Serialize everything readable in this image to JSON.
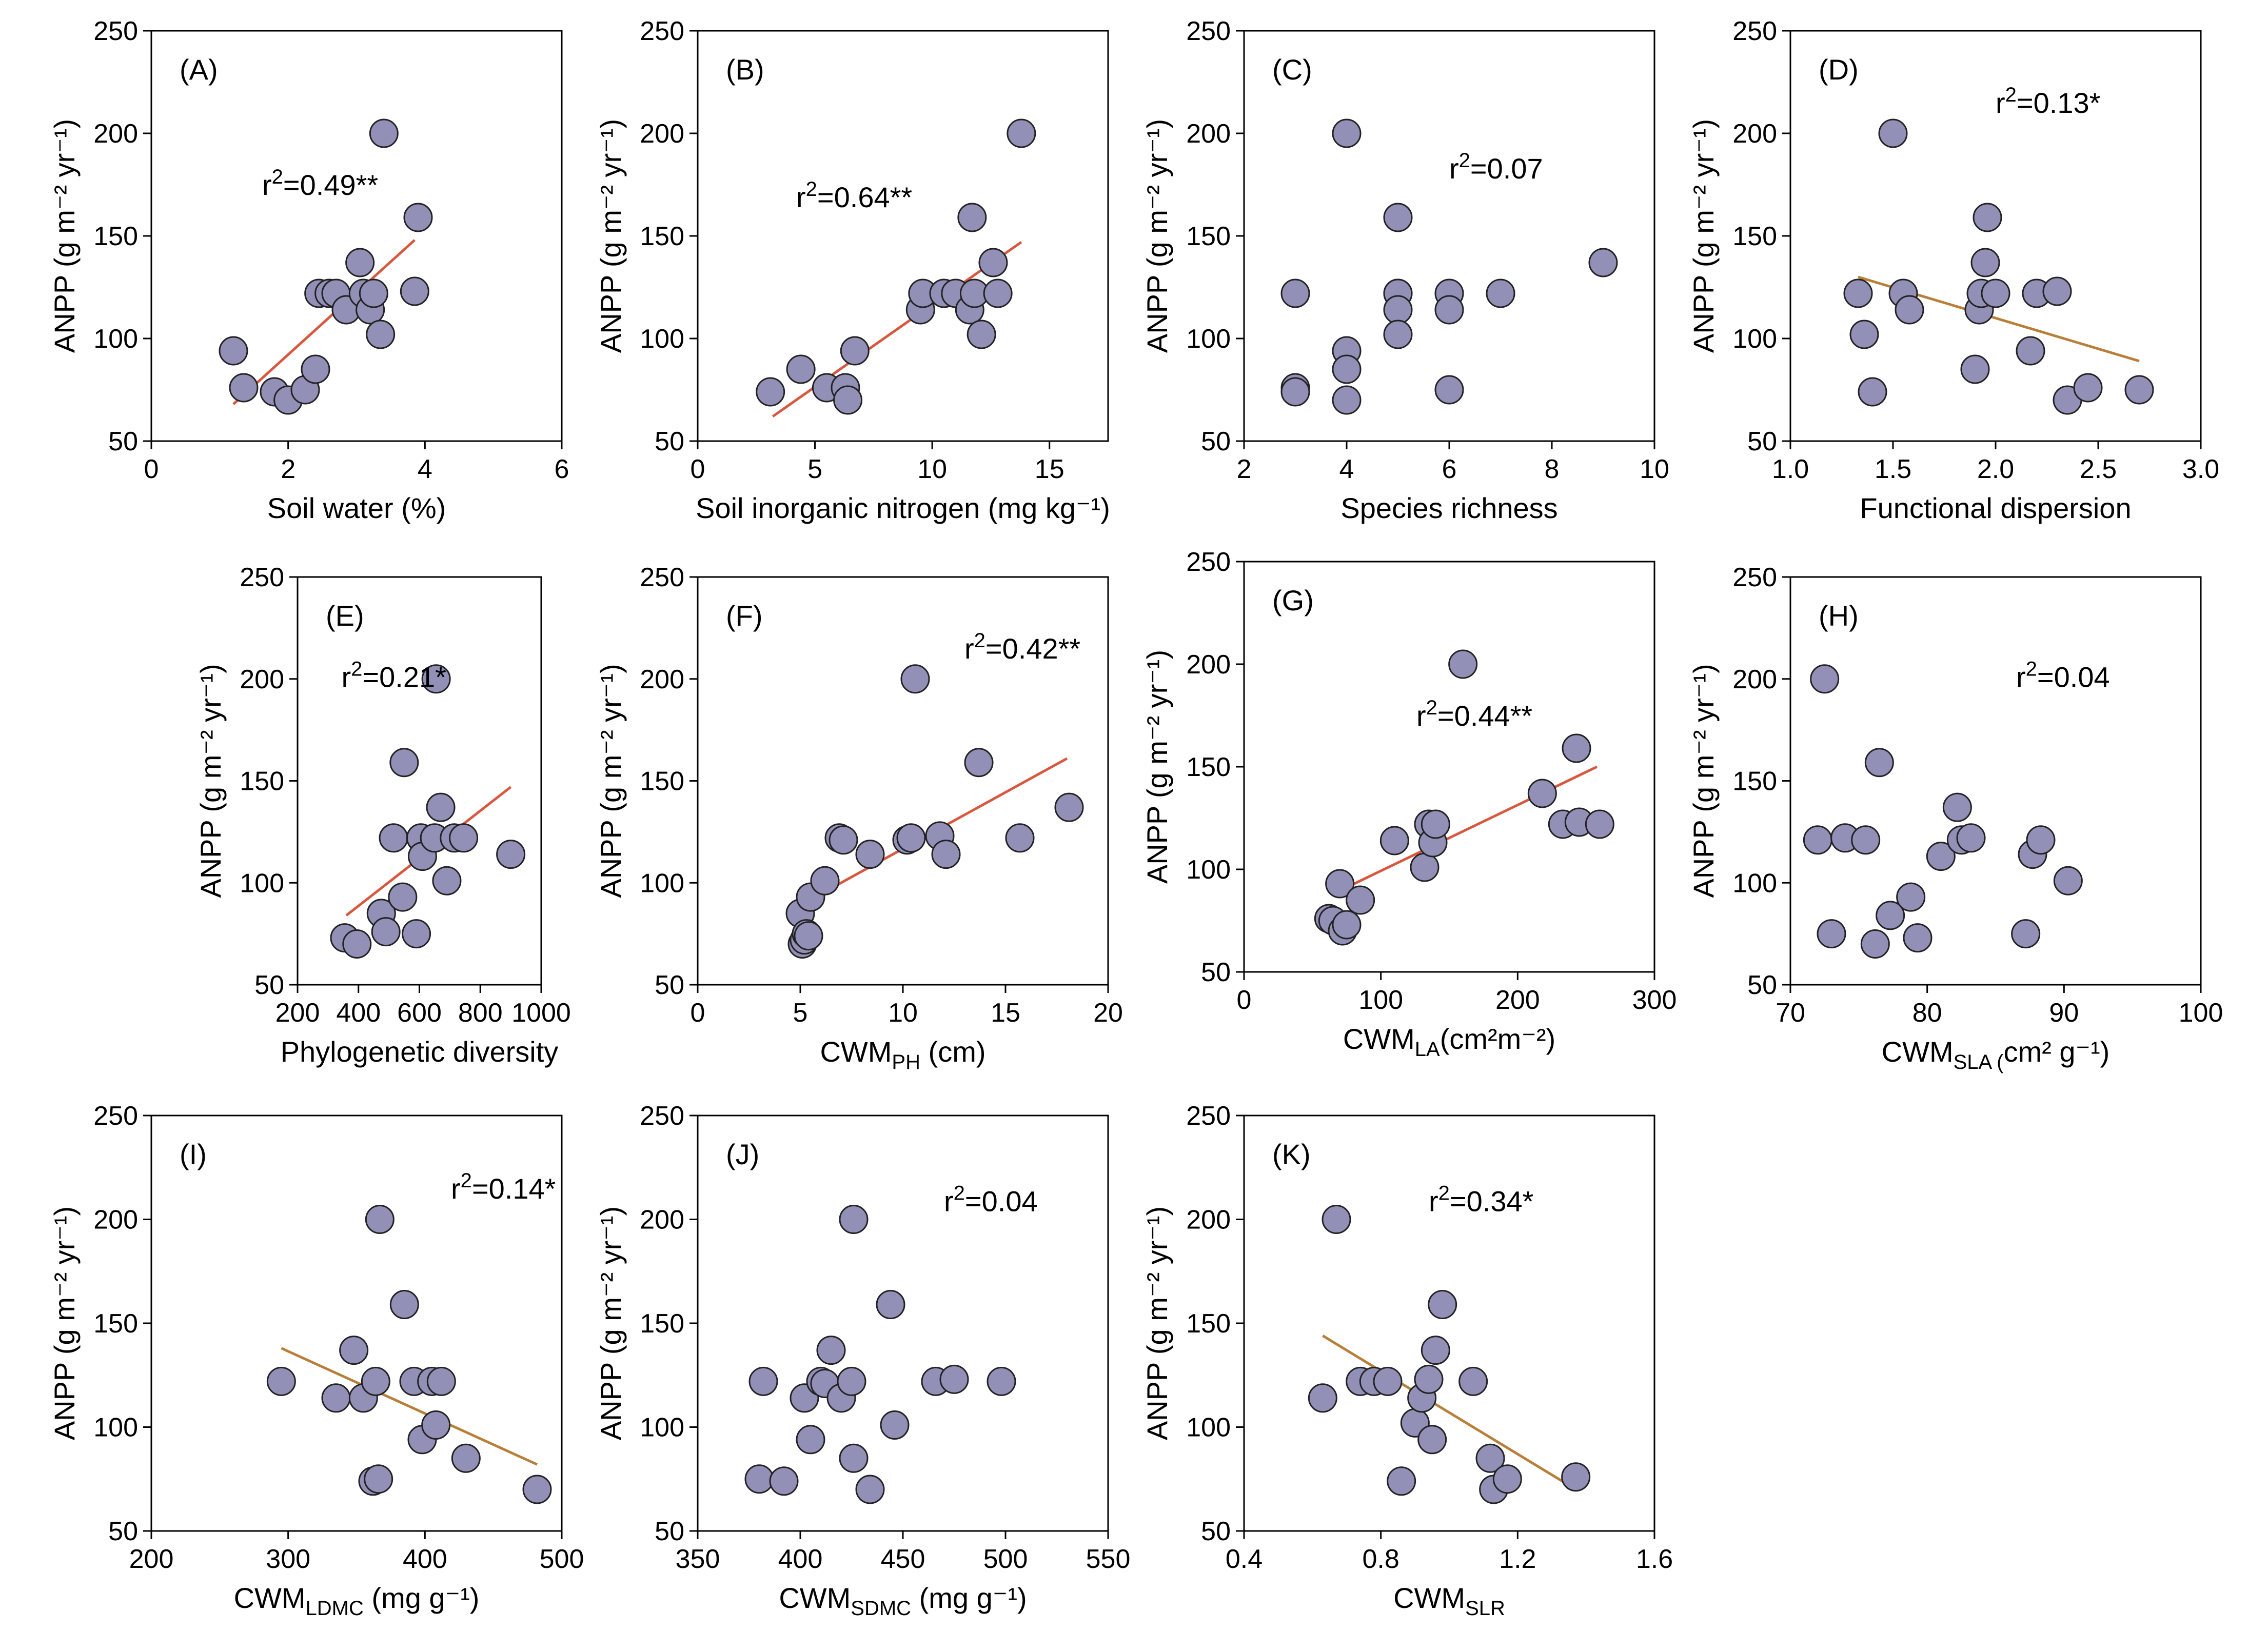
{
  "colors": {
    "point_fill": "#9390b8",
    "line_red": "#d9573f",
    "line_brown": "#b97f39"
  },
  "chart_data": [
    {
      "type": "scatter",
      "panel": "(A)",
      "xlabel": "Soil water (%)",
      "ylabel": "ANPP (g m⁻² yr⁻¹)",
      "xlim": [
        0,
        6
      ],
      "ylim": [
        50,
        250
      ],
      "xticks": [
        0,
        2,
        4,
        6
      ],
      "xtick_labels": [
        "0",
        "2",
        "4",
        "6"
      ],
      "yticks": [
        50,
        100,
        150,
        200,
        250
      ],
      "annotation": "r²=0.49**",
      "line_color": "#d9573f",
      "fit": [
        [
          1.2,
          68
        ],
        [
          3.85,
          148
        ]
      ],
      "x": [
        1.2,
        1.35,
        1.8,
        2.0,
        2.25,
        2.4,
        2.45,
        2.6,
        2.7,
        2.85,
        3.05,
        3.1,
        3.2,
        3.25,
        3.35,
        3.4,
        3.85,
        3.9
      ],
      "y": [
        94,
        76,
        74,
        70,
        75,
        85,
        122,
        122,
        122,
        114,
        137,
        122,
        114,
        122,
        102,
        200,
        123,
        159
      ]
    },
    {
      "type": "scatter",
      "panel": "(B)",
      "xlabel": "Soil inorganic nitrogen (mg kg⁻¹)",
      "ylabel": "ANPP (g m⁻² yr⁻¹)",
      "xlim": [
        0,
        17.5
      ],
      "ylim": [
        50,
        250
      ],
      "xticks": [
        0,
        5,
        10,
        15
      ],
      "xtick_labels": [
        "0",
        "5",
        "10",
        "15"
      ],
      "yticks": [
        50,
        100,
        150,
        200,
        250
      ],
      "annotation": "r²=0.64**",
      "line_color": "#d9573f",
      "fit": [
        [
          3.2,
          62
        ],
        [
          13.8,
          147
        ]
      ],
      "x": [
        3.1,
        4.4,
        5.5,
        6.3,
        6.4,
        6.7,
        9.5,
        9.6,
        10.5,
        11.0,
        11.6,
        11.7,
        11.8,
        12.1,
        12.6,
        12.8,
        13.8
      ],
      "y": [
        74,
        85,
        76,
        76,
        70,
        94,
        114,
        122,
        122,
        122,
        114,
        159,
        122,
        102,
        137,
        122,
        200
      ]
    },
    {
      "type": "scatter",
      "panel": "(C)",
      "xlabel": "Species richness",
      "ylabel": "ANPP (g m⁻² yr⁻¹)",
      "xlim": [
        2,
        10
      ],
      "ylim": [
        50,
        250
      ],
      "xticks": [
        2,
        4,
        6,
        8,
        10
      ],
      "xtick_labels": [
        "2",
        "4",
        "6",
        "8",
        "10"
      ],
      "yticks": [
        50,
        100,
        150,
        200,
        250
      ],
      "annotation": "r²=0.07",
      "x": [
        3,
        3,
        3,
        4,
        4,
        4,
        4,
        5,
        5,
        5,
        5,
        5,
        6,
        6,
        6,
        7,
        9
      ],
      "y": [
        122,
        76,
        74,
        94,
        85,
        70,
        200,
        159,
        122,
        122,
        114,
        102,
        122,
        114,
        75,
        122,
        137
      ]
    },
    {
      "type": "scatter",
      "panel": "(D)",
      "xlabel": "Functional dispersion",
      "ylabel": "ANPP (g m⁻² yr⁻¹)",
      "xlim": [
        1.0,
        3.0
      ],
      "ylim": [
        50,
        250
      ],
      "xticks": [
        1.0,
        1.5,
        2.0,
        2.5,
        3.0
      ],
      "xtick_labels": [
        "1.0",
        "1.5",
        "2.0",
        "2.5",
        "3.0"
      ],
      "yticks": [
        50,
        100,
        150,
        200,
        250
      ],
      "annotation": "r²=0.13*",
      "line_color": "#b97f39",
      "fit": [
        [
          1.33,
          130
        ],
        [
          2.7,
          89
        ]
      ],
      "x": [
        1.33,
        1.36,
        1.4,
        1.5,
        1.55,
        1.58,
        1.9,
        1.92,
        1.93,
        1.95,
        1.96,
        2.0,
        2.17,
        2.2,
        2.3,
        2.35,
        2.45,
        2.7
      ],
      "y": [
        122,
        102,
        74,
        200,
        122,
        114,
        85,
        114,
        122,
        137,
        159,
        122,
        94,
        122,
        123,
        70,
        76,
        75
      ]
    },
    {
      "type": "scatter",
      "panel": "(E)",
      "xlabel": "Phylogenetic diversity",
      "ylabel": "ANPP (g m⁻² yr⁻¹)",
      "xlim": [
        200,
        1000
      ],
      "ylim": [
        50,
        250
      ],
      "xticks": [
        200,
        400,
        600,
        800,
        1000
      ],
      "xtick_labels": [
        "200",
        "400",
        "600",
        "800",
        "1000"
      ],
      "yticks": [
        50,
        100,
        150,
        200,
        250
      ],
      "annotation": "r²=0.21*",
      "line_color": "#d9573f",
      "fit": [
        [
          360,
          84
        ],
        [
          900,
          147
        ]
      ],
      "x": [
        355,
        395,
        475,
        490,
        515,
        545,
        550,
        590,
        605,
        610,
        650,
        655,
        670,
        690,
        715,
        745,
        900
      ],
      "y": [
        73,
        70,
        85,
        76,
        122,
        93,
        159,
        75,
        122,
        113,
        122,
        200,
        137,
        101,
        122,
        122,
        114
      ]
    },
    {
      "type": "scatter",
      "panel": "(F)",
      "xlabel": "CWM",
      "xlabel_sub": "PH",
      "xlabel_suffix": " (cm)",
      "ylabel": "ANPP (g m⁻² yr⁻¹)",
      "xlim": [
        0,
        20
      ],
      "ylim": [
        50,
        250
      ],
      "xticks": [
        0,
        5,
        10,
        15,
        20
      ],
      "xtick_labels": [
        "0",
        "5",
        "10",
        "15",
        "20"
      ],
      "yticks": [
        50,
        100,
        150,
        200,
        250
      ],
      "annotation": "r²=0.42**",
      "line_color": "#d9573f",
      "fit": [
        [
          5.0,
          89
        ],
        [
          18.0,
          161
        ]
      ],
      "x": [
        5.0,
        5.1,
        5.2,
        5.3,
        5.4,
        5.5,
        6.2,
        6.9,
        7.1,
        8.4,
        10.2,
        10.4,
        10.6,
        11.8,
        12.1,
        13.7,
        15.7,
        18.1
      ],
      "y": [
        85,
        70,
        72,
        75,
        74,
        93,
        101,
        122,
        121,
        114,
        121,
        122,
        200,
        123,
        114,
        159,
        122,
        137
      ]
    },
    {
      "type": "scatter",
      "panel": "(G)",
      "xlabel": "CWM",
      "xlabel_sub": "LA",
      "xlabel_suffix": "(cm²m⁻²)",
      "ylabel": "ANPP (g m⁻² yr⁻¹)",
      "xlim": [
        0,
        300
      ],
      "ylim": [
        50,
        250
      ],
      "xticks": [
        0,
        100,
        200,
        300
      ],
      "xtick_labels": [
        "0",
        "100",
        "200",
        "300"
      ],
      "yticks": [
        50,
        100,
        150,
        200,
        250
      ],
      "annotation": "r²=0.44**",
      "line_color": "#d9573f",
      "fit": [
        [
          65,
          88
        ],
        [
          258,
          150
        ]
      ],
      "x": [
        62,
        65,
        70,
        72,
        75,
        85,
        110,
        132,
        135,
        138,
        140,
        160,
        218,
        233,
        245,
        243,
        260
      ],
      "y": [
        76,
        75,
        93,
        70,
        73,
        85,
        114,
        101,
        122,
        113,
        122,
        200,
        137,
        122,
        123,
        159,
        122
      ]
    },
    {
      "type": "scatter",
      "panel": "(H)",
      "xlabel": "CWM",
      "xlabel_sub": "SLA (",
      "xlabel_suffix": "cm² g⁻¹)",
      "ylabel": "ANPP (g m⁻² yr⁻¹)",
      "xlim": [
        70,
        100
      ],
      "ylim": [
        50,
        250
      ],
      "xticks": [
        70,
        80,
        90,
        100
      ],
      "xtick_labels": [
        "70",
        "80",
        "90",
        "100"
      ],
      "yticks": [
        50,
        100,
        150,
        200,
        250
      ],
      "annotation": "r²=0.04",
      "x": [
        72,
        72.5,
        73,
        74,
        75.5,
        76.2,
        76.5,
        77.3,
        78.8,
        79.3,
        81.0,
        82.2,
        82.5,
        83.2,
        87.2,
        87.7,
        88.3,
        90.3
      ],
      "y": [
        121,
        200,
        75,
        122,
        121,
        70,
        159,
        84,
        93,
        73,
        113,
        137,
        121,
        122,
        75,
        114,
        121,
        101
      ]
    },
    {
      "type": "scatter",
      "panel": "(I)",
      "xlabel": "CWM",
      "xlabel_sub": "LDMC",
      "xlabel_suffix": " (mg g⁻¹)",
      "ylabel": "ANPP (g m⁻² yr⁻¹)",
      "xlim": [
        200,
        500
      ],
      "ylim": [
        50,
        250
      ],
      "xticks": [
        200,
        300,
        400,
        500
      ],
      "xtick_labels": [
        "200",
        "300",
        "400",
        "500"
      ],
      "yticks": [
        50,
        100,
        150,
        200,
        250
      ],
      "annotation": "r²=0.14*",
      "line_color": "#b97f39",
      "fit": [
        [
          295,
          138
        ],
        [
          482,
          82
        ]
      ],
      "x": [
        295,
        335,
        348,
        355,
        362,
        364,
        366,
        367,
        385,
        392,
        398,
        405,
        408,
        412,
        430,
        482
      ],
      "y": [
        122,
        114,
        137,
        114,
        74,
        122,
        75,
        200,
        159,
        122,
        94,
        122,
        101,
        122,
        85,
        70
      ]
    },
    {
      "type": "scatter",
      "panel": "(J)",
      "xlabel": "CWM",
      "xlabel_sub": "SDMC",
      "xlabel_suffix": " (mg g⁻¹)",
      "ylabel": "ANPP (g m⁻² yr⁻¹)",
      "xlim": [
        350,
        550
      ],
      "ylim": [
        50,
        250
      ],
      "xticks": [
        350,
        400,
        450,
        500,
        550
      ],
      "xtick_labels": [
        "350",
        "400",
        "450",
        "500",
        "550"
      ],
      "yticks": [
        50,
        100,
        150,
        200,
        250
      ],
      "annotation": "r²=0.04",
      "x": [
        380,
        382,
        392,
        402,
        405,
        410,
        412,
        415,
        420,
        425,
        426,
        426,
        434,
        444,
        446,
        466,
        475,
        498
      ],
      "y": [
        75,
        122,
        74,
        114,
        94,
        122,
        121,
        137,
        114,
        122,
        85,
        200,
        70,
        159,
        101,
        122,
        123,
        122
      ],
      "x_extra_note": ""
    },
    {
      "type": "scatter",
      "panel": "(K)",
      "xlabel": "CWM",
      "xlabel_sub": "SLR",
      "xlabel_suffix": "",
      "ylabel": "ANPP (g m⁻² yr⁻¹)",
      "xlim": [
        0.4,
        1.6
      ],
      "ylim": [
        50,
        250
      ],
      "xticks": [
        0.4,
        0.8,
        1.2,
        1.6
      ],
      "xtick_labels": [
        "0.4",
        "0.8",
        "1.2",
        "1.6"
      ],
      "yticks": [
        50,
        100,
        150,
        200,
        250
      ],
      "annotation": "r²=0.34*",
      "line_color": "#b97f39",
      "fit": [
        [
          0.63,
          144
        ],
        [
          1.37,
          70
        ]
      ],
      "x": [
        0.63,
        0.67,
        0.74,
        0.78,
        0.82,
        0.86,
        0.9,
        0.92,
        0.94,
        0.95,
        0.96,
        0.98,
        1.07,
        1.12,
        1.13,
        1.17,
        1.37
      ],
      "y": [
        114,
        200,
        122,
        122,
        122,
        74,
        102,
        114,
        123,
        94,
        137,
        159,
        122,
        85,
        70,
        75,
        76
      ]
    }
  ]
}
